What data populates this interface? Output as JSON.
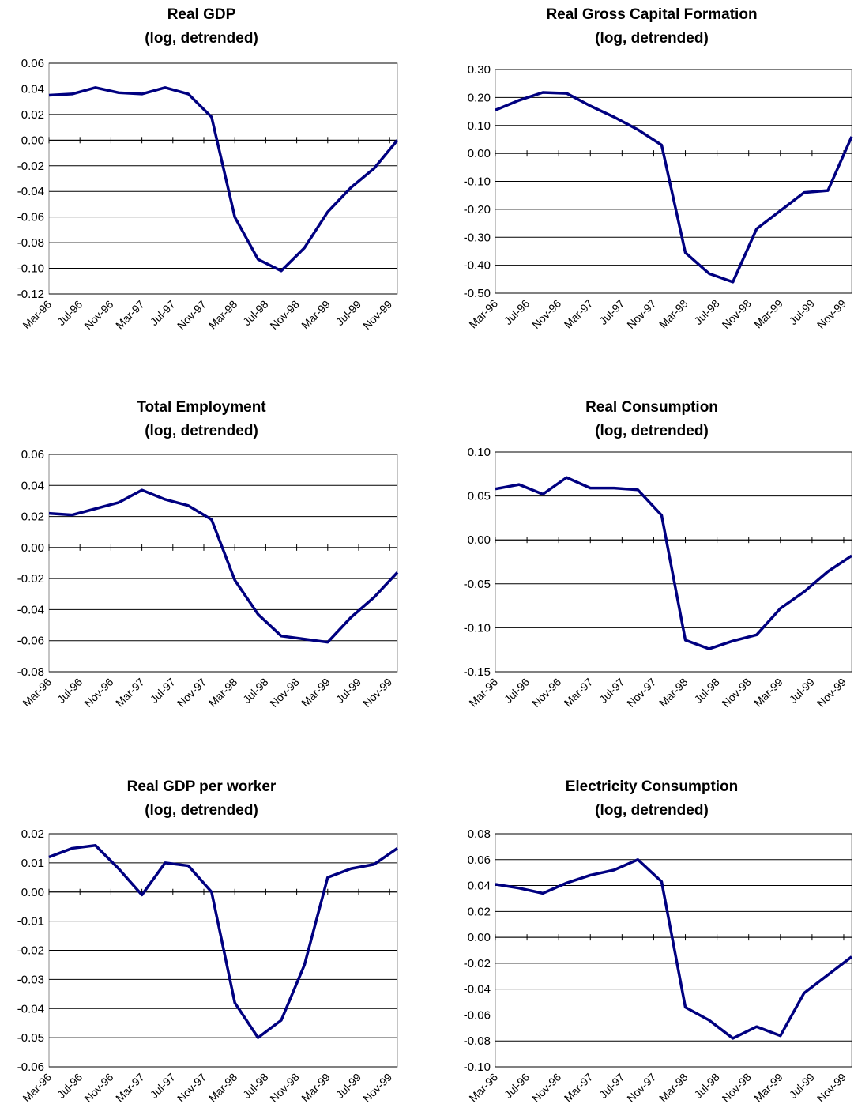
{
  "chart_data": [
    {
      "type": "line",
      "title": "Real GDP",
      "subtitle": "(log, detrended)",
      "color": "#000080",
      "x": [
        "1996-03",
        "1996-06",
        "1996-09",
        "1996-12",
        "1997-03",
        "1997-06",
        "1997-09",
        "1997-12",
        "1998-03",
        "1998-06",
        "1998-09",
        "1998-12",
        "1999-03",
        "1999-06",
        "1999-09",
        "1999-12"
      ],
      "values": [
        0.035,
        0.036,
        0.041,
        0.037,
        0.036,
        0.041,
        0.036,
        0.018,
        -0.06,
        -0.093,
        -0.102,
        -0.084,
        -0.056,
        -0.037,
        -0.022,
        0.0
      ],
      "xlim": [
        "1996-03",
        "1999-12"
      ],
      "xticks": [
        {
          "value": "1996-03",
          "label": "Mar-96"
        },
        {
          "value": "1996-07",
          "label": "Jul-96"
        },
        {
          "value": "1996-11",
          "label": "Nov-96"
        },
        {
          "value": "1997-03",
          "label": "Mar-97"
        },
        {
          "value": "1997-07",
          "label": "Jul-97"
        },
        {
          "value": "1997-11",
          "label": "Nov-97"
        },
        {
          "value": "1998-03",
          "label": "Mar-98"
        },
        {
          "value": "1998-07",
          "label": "Jul-98"
        },
        {
          "value": "1998-11",
          "label": "Nov-98"
        },
        {
          "value": "1999-03",
          "label": "Mar-99"
        },
        {
          "value": "1999-07",
          "label": "Jul-99"
        },
        {
          "value": "1999-11",
          "label": "Nov-99"
        }
      ],
      "ylim": [
        -0.12,
        0.06
      ],
      "yticks": [
        {
          "value": -0.12,
          "label": "-0.12"
        },
        {
          "value": -0.1,
          "label": "-0.10"
        },
        {
          "value": -0.08,
          "label": "-0.08"
        },
        {
          "value": -0.06,
          "label": "-0.06"
        },
        {
          "value": -0.04,
          "label": "-0.04"
        },
        {
          "value": -0.02,
          "label": "-0.02"
        },
        {
          "value": 0,
          "label": "0.00"
        },
        {
          "value": 0.02,
          "label": "0.02"
        },
        {
          "value": 0.04,
          "label": "0.04"
        },
        {
          "value": 0.06,
          "label": "0.06"
        }
      ],
      "grid": true
    },
    {
      "type": "line",
      "title": "Real Gross Capital Formation",
      "subtitle": "(log, detrended)",
      "color": "#000080",
      "x": [
        "1996-03",
        "1996-06",
        "1996-09",
        "1996-12",
        "1997-03",
        "1997-06",
        "1997-09",
        "1997-12",
        "1998-03",
        "1998-06",
        "1998-09",
        "1998-12",
        "1999-03",
        "1999-06",
        "1999-09",
        "1999-12"
      ],
      "values": [
        0.155,
        0.19,
        0.218,
        0.215,
        0.17,
        0.13,
        0.085,
        0.03,
        -0.355,
        -0.43,
        -0.46,
        -0.27,
        -0.205,
        -0.14,
        -0.133,
        0.06
      ],
      "xlim": [
        "1996-03",
        "1999-12"
      ],
      "xticks": [
        {
          "value": "1996-03",
          "label": "Mar-96"
        },
        {
          "value": "1996-07",
          "label": "Jul-96"
        },
        {
          "value": "1996-11",
          "label": "Nov-96"
        },
        {
          "value": "1997-03",
          "label": "Mar-97"
        },
        {
          "value": "1997-07",
          "label": "Jul-97"
        },
        {
          "value": "1997-11",
          "label": "Nov-97"
        },
        {
          "value": "1998-03",
          "label": "Mar-98"
        },
        {
          "value": "1998-07",
          "label": "Jul-98"
        },
        {
          "value": "1998-11",
          "label": "Nov-98"
        },
        {
          "value": "1999-03",
          "label": "Mar-99"
        },
        {
          "value": "1999-07",
          "label": "Jul-99"
        },
        {
          "value": "1999-11",
          "label": "Nov-99"
        }
      ],
      "ylim": [
        -0.5,
        0.3
      ],
      "yticks": [
        {
          "value": -0.5,
          "label": "-0.50"
        },
        {
          "value": -0.4,
          "label": "-0.40"
        },
        {
          "value": -0.3,
          "label": "-0.30"
        },
        {
          "value": -0.2,
          "label": "-0.20"
        },
        {
          "value": -0.1,
          "label": "-0.10"
        },
        {
          "value": 0,
          "label": "0.00"
        },
        {
          "value": 0.1,
          "label": "0.10"
        },
        {
          "value": 0.2,
          "label": "0.20"
        },
        {
          "value": 0.3,
          "label": "0.30"
        }
      ],
      "grid": true
    },
    {
      "type": "line",
      "title": "Total Employment",
      "subtitle": "(log, detrended)",
      "color": "#000080",
      "x": [
        "1996-03",
        "1996-06",
        "1996-09",
        "1996-12",
        "1997-03",
        "1997-06",
        "1997-09",
        "1997-12",
        "1998-03",
        "1998-06",
        "1998-09",
        "1998-12",
        "1999-03",
        "1999-06",
        "1999-09",
        "1999-12"
      ],
      "values": [
        0.022,
        0.021,
        0.025,
        0.029,
        0.037,
        0.031,
        0.027,
        0.018,
        -0.021,
        -0.043,
        -0.057,
        -0.059,
        -0.061,
        -0.045,
        -0.032,
        -0.016
      ],
      "xlim": [
        "1996-03",
        "1999-12"
      ],
      "xticks": [
        {
          "value": "1996-03",
          "label": "Mar-96"
        },
        {
          "value": "1996-07",
          "label": "Jul-96"
        },
        {
          "value": "1996-11",
          "label": "Nov-96"
        },
        {
          "value": "1997-03",
          "label": "Mar-97"
        },
        {
          "value": "1997-07",
          "label": "Jul-97"
        },
        {
          "value": "1997-11",
          "label": "Nov-97"
        },
        {
          "value": "1998-03",
          "label": "Mar-98"
        },
        {
          "value": "1998-07",
          "label": "Jul-98"
        },
        {
          "value": "1998-11",
          "label": "Nov-98"
        },
        {
          "value": "1999-03",
          "label": "Mar-99"
        },
        {
          "value": "1999-07",
          "label": "Jul-99"
        },
        {
          "value": "1999-11",
          "label": "Nov-99"
        }
      ],
      "ylim": [
        -0.08,
        0.06
      ],
      "yticks": [
        {
          "value": -0.08,
          "label": "-0.08"
        },
        {
          "value": -0.06,
          "label": "-0.06"
        },
        {
          "value": -0.04,
          "label": "-0.04"
        },
        {
          "value": -0.02,
          "label": "-0.02"
        },
        {
          "value": 0,
          "label": "0.00"
        },
        {
          "value": 0.02,
          "label": "0.02"
        },
        {
          "value": 0.04,
          "label": "0.04"
        },
        {
          "value": 0.06,
          "label": "0.06"
        }
      ],
      "grid": true
    },
    {
      "type": "line",
      "title": "Real Consumption",
      "subtitle": "(log, detrended)",
      "color": "#000080",
      "x": [
        "1996-03",
        "1996-06",
        "1996-09",
        "1996-12",
        "1997-03",
        "1997-06",
        "1997-09",
        "1997-12",
        "1998-03",
        "1998-06",
        "1998-09",
        "1998-12",
        "1999-03",
        "1999-06",
        "1999-09",
        "1999-12"
      ],
      "values": [
        0.058,
        0.063,
        0.052,
        0.071,
        0.059,
        0.059,
        0.057,
        0.028,
        -0.114,
        -0.124,
        -0.115,
        -0.108,
        -0.078,
        -0.059,
        -0.036,
        -0.018
      ],
      "xlim": [
        "1996-03",
        "1999-12"
      ],
      "xticks": [
        {
          "value": "1996-03",
          "label": "Mar-96"
        },
        {
          "value": "1996-07",
          "label": "Jul-96"
        },
        {
          "value": "1996-11",
          "label": "Nov-96"
        },
        {
          "value": "1997-03",
          "label": "Mar-97"
        },
        {
          "value": "1997-07",
          "label": "Jul-97"
        },
        {
          "value": "1997-11",
          "label": "Nov-97"
        },
        {
          "value": "1998-03",
          "label": "Mar-98"
        },
        {
          "value": "1998-07",
          "label": "Jul-98"
        },
        {
          "value": "1998-11",
          "label": "Nov-98"
        },
        {
          "value": "1999-03",
          "label": "Mar-99"
        },
        {
          "value": "1999-07",
          "label": "Jul-99"
        },
        {
          "value": "1999-11",
          "label": "Nov-99"
        }
      ],
      "ylim": [
        -0.15,
        0.1
      ],
      "yticks": [
        {
          "value": -0.15,
          "label": "-0.15"
        },
        {
          "value": -0.1,
          "label": "-0.10"
        },
        {
          "value": -0.05,
          "label": "-0.05"
        },
        {
          "value": 0,
          "label": "0.00"
        },
        {
          "value": 0.05,
          "label": "0.05"
        },
        {
          "value": 0.1,
          "label": "0.10"
        }
      ],
      "grid": true
    },
    {
      "type": "line",
      "title": "Real GDP per worker",
      "subtitle": "(log, detrended)",
      "color": "#000080",
      "x": [
        "1996-03",
        "1996-06",
        "1996-09",
        "1996-12",
        "1997-03",
        "1997-06",
        "1997-09",
        "1997-12",
        "1998-03",
        "1998-06",
        "1998-09",
        "1998-12",
        "1999-03",
        "1999-06",
        "1999-09",
        "1999-12"
      ],
      "values": [
        0.012,
        0.015,
        0.016,
        0.008,
        -0.001,
        0.01,
        0.009,
        0.0,
        -0.038,
        -0.05,
        -0.044,
        -0.025,
        0.005,
        0.008,
        0.0095,
        0.015
      ],
      "xlim": [
        "1996-03",
        "1999-12"
      ],
      "xticks": [
        {
          "value": "1996-03",
          "label": "Mar-96"
        },
        {
          "value": "1996-07",
          "label": "Jul-96"
        },
        {
          "value": "1996-11",
          "label": "Nov-96"
        },
        {
          "value": "1997-03",
          "label": "Mar-97"
        },
        {
          "value": "1997-07",
          "label": "Jul-97"
        },
        {
          "value": "1997-11",
          "label": "Nov-97"
        },
        {
          "value": "1998-03",
          "label": "Mar-98"
        },
        {
          "value": "1998-07",
          "label": "Jul-98"
        },
        {
          "value": "1998-11",
          "label": "Nov-98"
        },
        {
          "value": "1999-03",
          "label": "Mar-99"
        },
        {
          "value": "1999-07",
          "label": "Jul-99"
        },
        {
          "value": "1999-11",
          "label": "Nov-99"
        }
      ],
      "ylim": [
        -0.06,
        0.02
      ],
      "yticks": [
        {
          "value": -0.06,
          "label": "-0.06"
        },
        {
          "value": -0.05,
          "label": "-0.05"
        },
        {
          "value": -0.04,
          "label": "-0.04"
        },
        {
          "value": -0.03,
          "label": "-0.03"
        },
        {
          "value": -0.02,
          "label": "-0.02"
        },
        {
          "value": -0.01,
          "label": "-0.01"
        },
        {
          "value": 0,
          "label": "0.00"
        },
        {
          "value": 0.01,
          "label": "0.01"
        },
        {
          "value": 0.02,
          "label": "0.02"
        }
      ],
      "grid": true
    },
    {
      "type": "line",
      "title": "Electricity Consumption",
      "subtitle": "(log, detrended)",
      "color": "#000080",
      "x": [
        "1996-03",
        "1996-06",
        "1996-09",
        "1996-12",
        "1997-03",
        "1997-06",
        "1997-09",
        "1997-12",
        "1998-03",
        "1998-06",
        "1998-09",
        "1998-12",
        "1999-03",
        "1999-06",
        "1999-09",
        "1999-12"
      ],
      "values": [
        0.041,
        0.038,
        0.034,
        0.042,
        0.048,
        0.052,
        0.06,
        0.043,
        -0.054,
        -0.064,
        -0.078,
        -0.069,
        -0.076,
        -0.043,
        -0.029,
        -0.015
      ],
      "xlim": [
        "1996-03",
        "1999-12"
      ],
      "xticks": [
        {
          "value": "1996-03",
          "label": "Mar-96"
        },
        {
          "value": "1996-07",
          "label": "Jul-96"
        },
        {
          "value": "1996-11",
          "label": "Nov-96"
        },
        {
          "value": "1997-03",
          "label": "Mar-97"
        },
        {
          "value": "1997-07",
          "label": "Jul-97"
        },
        {
          "value": "1997-11",
          "label": "Nov-97"
        },
        {
          "value": "1998-03",
          "label": "Mar-98"
        },
        {
          "value": "1998-07",
          "label": "Jul-98"
        },
        {
          "value": "1998-11",
          "label": "Nov-98"
        },
        {
          "value": "1999-03",
          "label": "Mar-99"
        },
        {
          "value": "1999-07",
          "label": "Jul-99"
        },
        {
          "value": "1999-11",
          "label": "Nov-99"
        }
      ],
      "ylim": [
        -0.1,
        0.08
      ],
      "yticks": [
        {
          "value": -0.1,
          "label": "-0.10"
        },
        {
          "value": -0.08,
          "label": "-0.08"
        },
        {
          "value": -0.06,
          "label": "-0.06"
        },
        {
          "value": -0.04,
          "label": "-0.04"
        },
        {
          "value": -0.02,
          "label": "-0.02"
        },
        {
          "value": 0,
          "label": "0.00"
        },
        {
          "value": 0.02,
          "label": "0.02"
        },
        {
          "value": 0.04,
          "label": "0.04"
        },
        {
          "value": 0.06,
          "label": "0.06"
        },
        {
          "value": 0.08,
          "label": "0.08"
        }
      ],
      "grid": true
    }
  ]
}
